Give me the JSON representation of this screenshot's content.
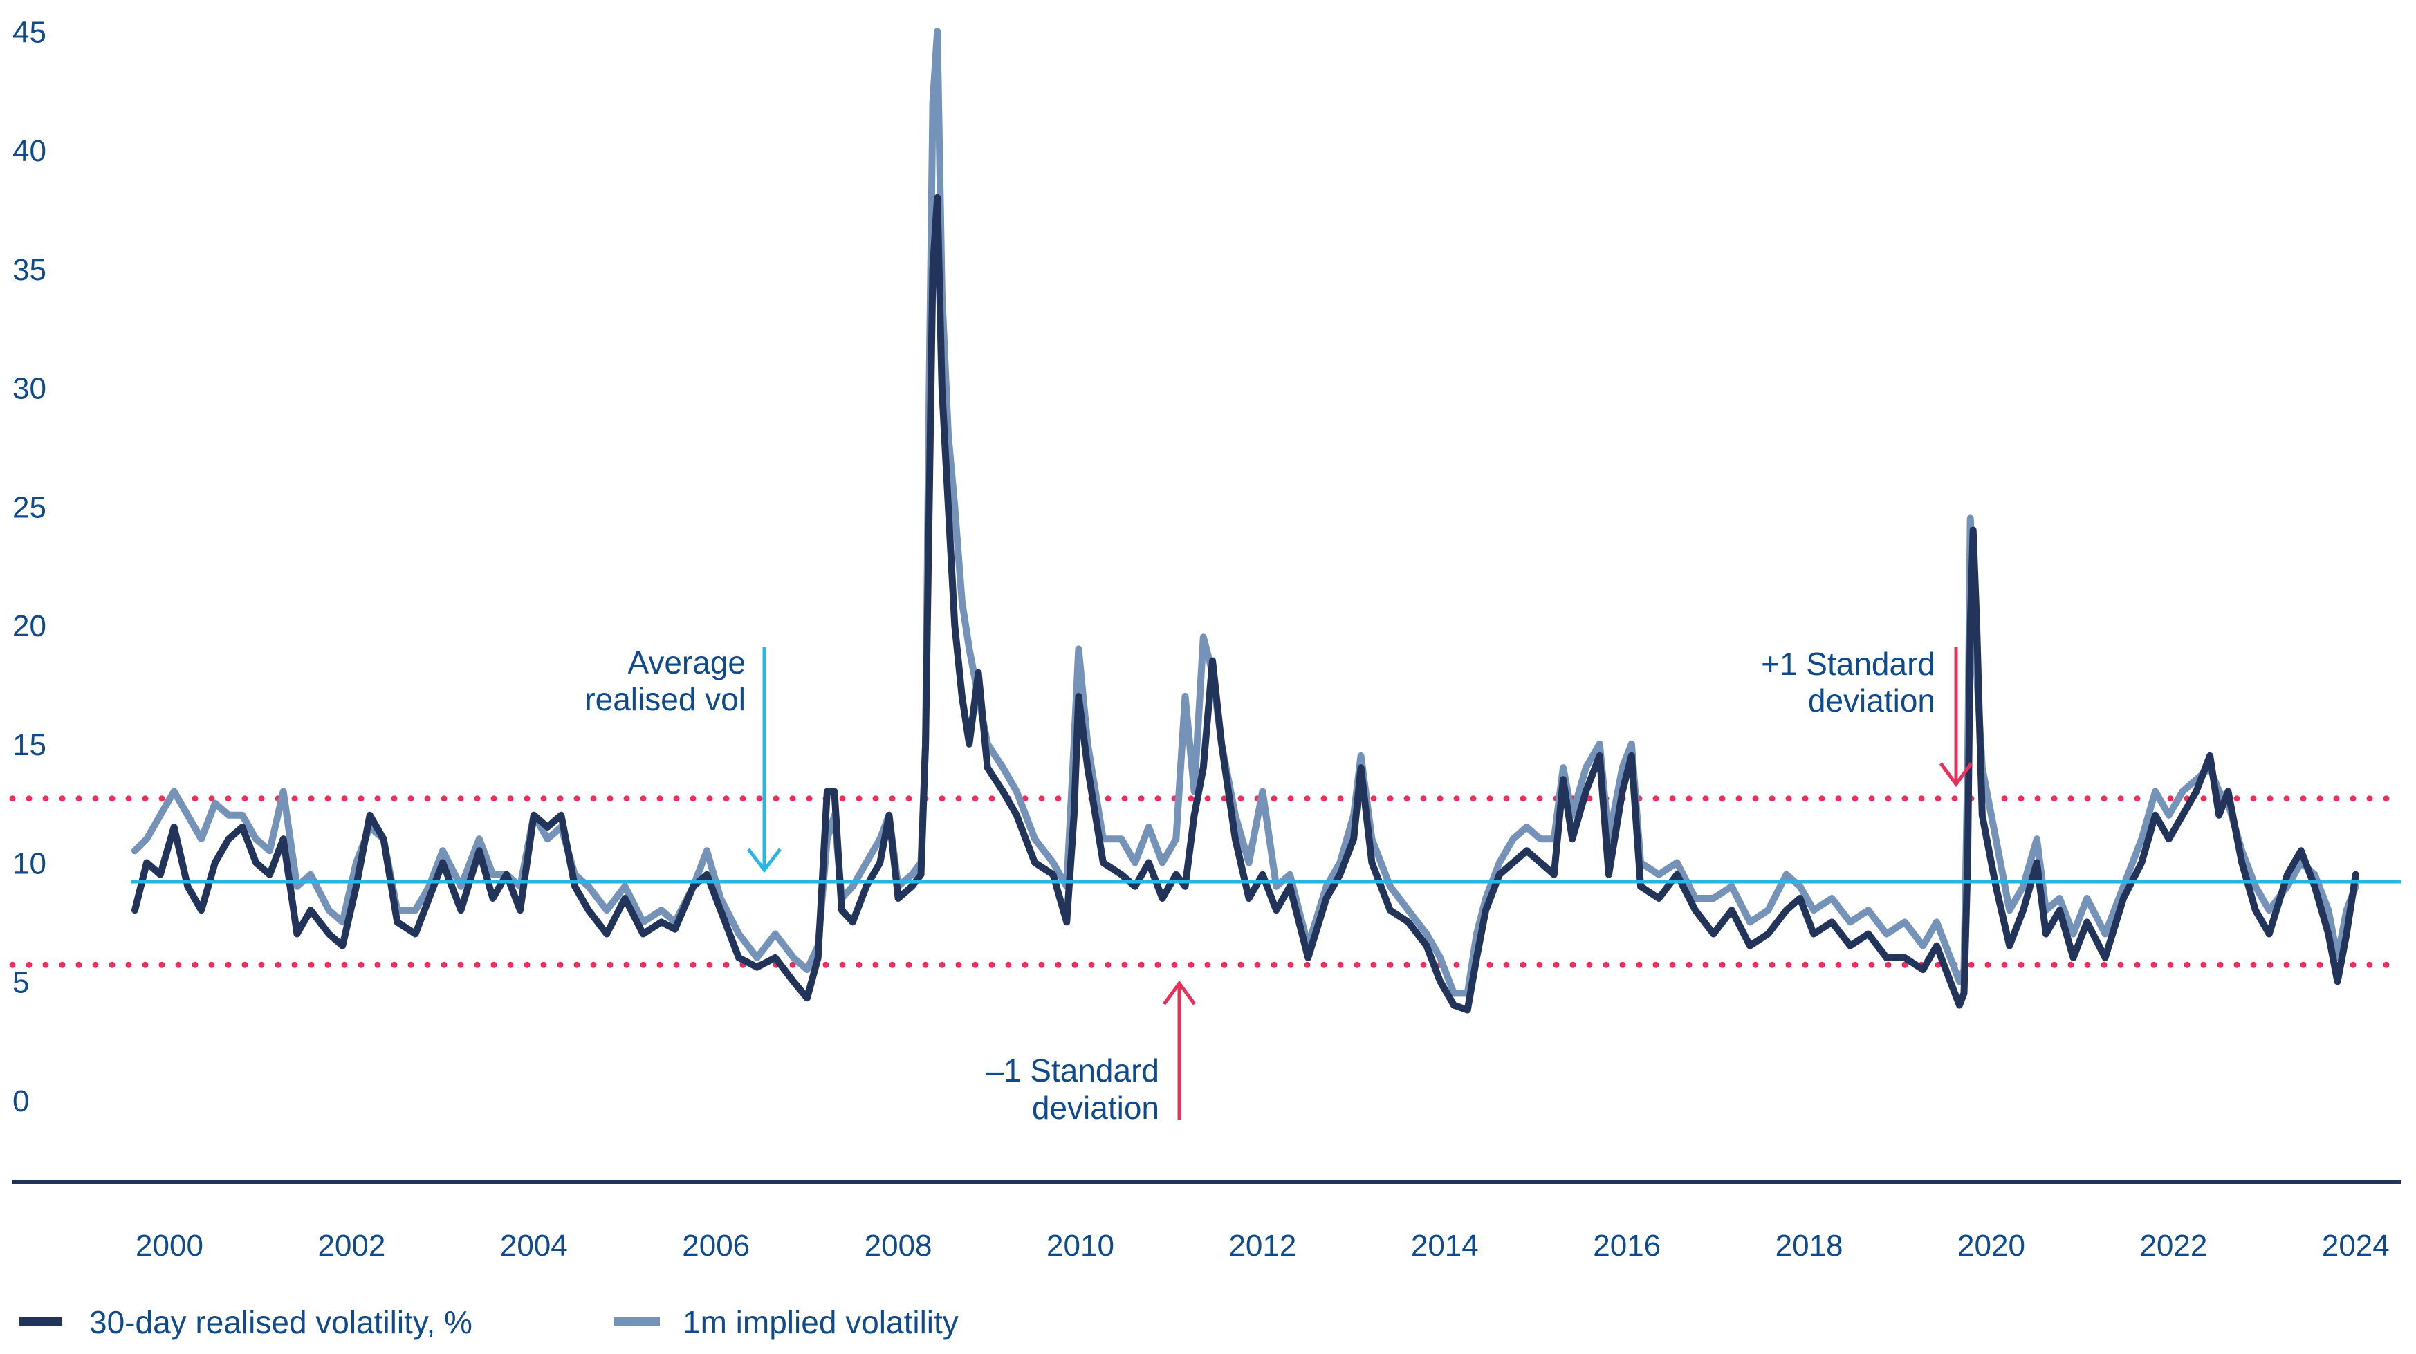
{
  "chart_data": {
    "type": "line",
    "title": "",
    "xlabel": "",
    "ylabel": "",
    "ylim": [
      0,
      45
    ],
    "xlim": [
      1999.6,
      2024.0
    ],
    "grid": false,
    "legend_position": "bottom-left",
    "y_ticks": [
      "0",
      "5",
      "10",
      "15",
      "20",
      "25",
      "30",
      "35",
      "40",
      "45"
    ],
    "x_ticks": [
      "2000",
      "2002",
      "2004",
      "2006",
      "2008",
      "2010",
      "2012",
      "2014",
      "2016",
      "2018",
      "2020",
      "2022",
      "2024"
    ],
    "reference_lines": {
      "average": 9.2,
      "plus_1_sd": 12.7,
      "minus_1_sd": 5.7
    },
    "annotations": {
      "average": [
        "Average",
        "realised vol"
      ],
      "plus_sd": [
        "+1 Standard",
        "deviation"
      ],
      "minus_sd": [
        "–1 Standard",
        "deviation"
      ]
    },
    "x": [
      1999.62,
      1999.75,
      1999.9,
      2000.05,
      2000.2,
      2000.35,
      2000.5,
      2000.65,
      2000.8,
      2000.95,
      2001.1,
      2001.25,
      2001.4,
      2001.55,
      2001.75,
      2001.9,
      2002.05,
      2002.2,
      2002.35,
      2002.5,
      2002.7,
      2002.85,
      2003.0,
      2003.2,
      2003.4,
      2003.55,
      2003.7,
      2003.85,
      2004.0,
      2004.15,
      2004.3,
      2004.45,
      2004.6,
      2004.8,
      2005.0,
      2005.2,
      2005.4,
      2005.55,
      2005.75,
      2005.9,
      2006.05,
      2006.25,
      2006.45,
      2006.65,
      2006.85,
      2007.0,
      2007.12,
      2007.22,
      2007.3,
      2007.38,
      2007.5,
      2007.65,
      2007.8,
      2007.9,
      2008.0,
      2008.15,
      2008.25,
      2008.3,
      2008.34,
      2008.38,
      2008.43,
      2008.48,
      2008.55,
      2008.62,
      2008.7,
      2008.78,
      2008.88,
      2008.98,
      2009.15,
      2009.3,
      2009.5,
      2009.7,
      2009.85,
      2009.93,
      2009.98,
      2010.08,
      2010.25,
      2010.45,
      2010.6,
      2010.75,
      2010.9,
      2011.05,
      2011.15,
      2011.25,
      2011.35,
      2011.45,
      2011.55,
      2011.7,
      2011.85,
      2012.0,
      2012.15,
      2012.3,
      2012.5,
      2012.7,
      2012.85,
      2013.0,
      2013.08,
      2013.2,
      2013.4,
      2013.6,
      2013.8,
      2013.95,
      2014.1,
      2014.25,
      2014.35,
      2014.45,
      2014.6,
      2014.75,
      2014.9,
      2015.05,
      2015.2,
      2015.3,
      2015.4,
      2015.55,
      2015.7,
      2015.8,
      2015.95,
      2016.05,
      2016.15,
      2016.35,
      2016.55,
      2016.75,
      2016.95,
      2017.15,
      2017.35,
      2017.55,
      2017.75,
      2017.9,
      2018.05,
      2018.25,
      2018.45,
      2018.65,
      2018.85,
      2019.05,
      2019.25,
      2019.4,
      2019.55,
      2019.65,
      2019.7,
      2019.74,
      2019.77,
      2019.8,
      2019.84,
      2019.9,
      2020.05,
      2020.2,
      2020.35,
      2020.5,
      2020.6,
      2020.75,
      2020.9,
      2021.05,
      2021.25,
      2021.45,
      2021.65,
      2021.8,
      2021.95,
      2022.1,
      2022.25,
      2022.4,
      2022.5,
      2022.6,
      2022.75,
      2022.9,
      2023.05,
      2023.25,
      2023.4,
      2023.55,
      2023.7,
      2023.8,
      2023.9,
      2024.0
    ],
    "series": [
      {
        "name": "30-day realised volatility, %",
        "color": "#22345a",
        "values": [
          8,
          10,
          9.5,
          11.5,
          9,
          8,
          10,
          11,
          11.5,
          10,
          9.5,
          11,
          7,
          8,
          7,
          6.5,
          9,
          12,
          11,
          7.5,
          7,
          8.5,
          10,
          8,
          10.5,
          8.5,
          9.5,
          8,
          12,
          11.5,
          12,
          9,
          8,
          7,
          8.5,
          7,
          7.5,
          7.2,
          9,
          9.5,
          8,
          6,
          5.6,
          6,
          5,
          4.3,
          6,
          13,
          13,
          8,
          7.5,
          9,
          10,
          12,
          8.5,
          9,
          9.5,
          15,
          25,
          35,
          38,
          30,
          25,
          20,
          17,
          15,
          18,
          14,
          13,
          12,
          10,
          9.5,
          7.5,
          12,
          17,
          14,
          10,
          9.5,
          9,
          10,
          8.5,
          9.5,
          9,
          12,
          14,
          18.5,
          15,
          11,
          8.5,
          9.5,
          8,
          9,
          6,
          8.5,
          9.5,
          11,
          14,
          10,
          8,
          7.5,
          6.5,
          5,
          4,
          3.8,
          6,
          8,
          9.5,
          10,
          10.5,
          10,
          9.5,
          13.5,
          11,
          13,
          14.5,
          9.5,
          13,
          14.5,
          9,
          8.5,
          9.5,
          8,
          7,
          8,
          6.5,
          7,
          8,
          8.5,
          7,
          7.5,
          6.5,
          7,
          6,
          6,
          5.5,
          6.5,
          5,
          4,
          4.5,
          10,
          20,
          24,
          20,
          12,
          9,
          6.5,
          8,
          10,
          7,
          8,
          6,
          7.5,
          6,
          8.5,
          10,
          12,
          11,
          12,
          13,
          14.5,
          12,
          13,
          10,
          8,
          7,
          9.5,
          10.5,
          9,
          7,
          5,
          7,
          9.5
        ]
      },
      {
        "name": "1m implied volatility",
        "color": "#7592b8",
        "values": [
          10.5,
          11,
          12,
          13,
          12,
          11,
          12.5,
          12,
          12,
          11,
          10.5,
          13,
          9,
          9.5,
          8,
          7.5,
          10,
          11.5,
          11,
          8,
          8,
          9,
          10.5,
          9,
          11,
          9.5,
          9.5,
          9,
          12,
          11,
          11.5,
          9.5,
          9,
          8,
          9,
          7.5,
          8,
          7.5,
          9,
          10.5,
          8.5,
          7,
          6,
          7,
          6,
          5.5,
          6.5,
          11,
          12,
          8.5,
          9,
          10,
          11,
          12,
          9,
          9.5,
          10,
          15,
          30,
          42,
          45,
          34,
          28,
          25,
          21,
          19,
          17,
          15,
          14,
          13,
          11,
          10,
          9,
          15,
          19,
          15,
          11,
          11,
          10,
          11.5,
          10,
          11,
          17,
          13,
          19.5,
          18,
          15,
          12,
          10,
          13,
          9,
          9.5,
          6.5,
          9,
          10,
          12,
          14.5,
          11,
          9,
          8,
          7,
          6,
          4.5,
          4.5,
          7,
          8.5,
          10,
          11,
          11.5,
          11,
          11,
          14,
          12,
          14,
          15,
          11,
          14,
          15,
          10,
          9.5,
          10,
          8.5,
          8.5,
          9,
          7.5,
          8,
          9.5,
          9,
          8,
          8.5,
          7.5,
          8,
          7,
          7.5,
          6.5,
          7.5,
          6,
          5,
          5.5,
          14,
          24.5,
          22,
          18,
          14,
          11,
          8,
          9,
          11,
          8,
          8.5,
          7,
          8.5,
          7,
          9,
          11,
          13,
          12,
          13,
          13.5,
          14,
          13,
          12.5,
          10.5,
          9,
          8,
          9,
          10,
          9.5,
          8,
          6,
          8,
          9
        ]
      }
    ],
    "avg_line_color": "#29b5e3",
    "sd_line_color": "#e8305a"
  },
  "legend": [
    {
      "label": "30-day realised volatility, %",
      "color": "#22345a"
    },
    {
      "label": "1m implied volatility",
      "color": "#7592b8"
    }
  ]
}
